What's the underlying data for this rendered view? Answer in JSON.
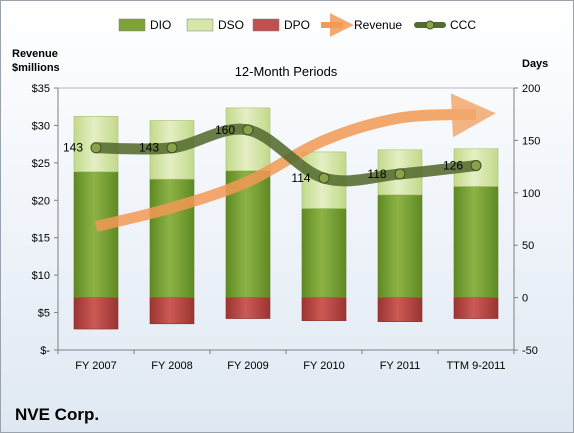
{
  "company": "NVE Corp.",
  "chart_data": {
    "type": "bar",
    "title": "12-Month Periods",
    "left_axis_title_line1": "Revenue",
    "left_axis_title_line2": "$millions",
    "right_axis_title": "Days",
    "categories": [
      "FY 2007",
      "FY 2008",
      "FY 2009",
      "FY 2010",
      "FY 2011",
      "TTM 9-2011"
    ],
    "left_ticks": [
      "$-",
      "$5",
      "$10",
      "$15",
      "$20",
      "$25",
      "$30",
      "$35"
    ],
    "right_ticks": [
      "-50",
      "0",
      "50",
      "100",
      "150",
      "200"
    ],
    "ylim_left": [
      0,
      35
    ],
    "ylim_right": [
      -50,
      200
    ],
    "legend": [
      "DIO",
      "DSO",
      "DPO",
      "Revenue",
      "CCC"
    ],
    "legend_position": "top",
    "colors": {
      "DIO": "#7ea23a",
      "DSO": "#d6e6a8",
      "DPO": "#c0504d",
      "Revenue": "#f29a55",
      "CCC": "#556b2f"
    },
    "series": [
      {
        "name": "DIO",
        "axis": "right",
        "values": [
          120,
          113,
          121,
          85,
          98,
          106
        ]
      },
      {
        "name": "DSO",
        "axis": "right",
        "values": [
          53,
          56,
          60,
          54,
          43,
          36
        ]
      },
      {
        "name": "DPO",
        "axis": "right",
        "values": [
          -30,
          -25,
          -20,
          -22,
          -23,
          -20
        ]
      },
      {
        "name": "CCC",
        "axis": "right",
        "values": [
          143,
          143,
          160,
          114,
          118,
          126
        ]
      },
      {
        "name": "Revenue",
        "axis": "left",
        "values": [
          16.5,
          19.0,
          22.5,
          28.0,
          31.0,
          31.5
        ]
      }
    ],
    "data_labels": [
      "143",
      "143",
      "160",
      "114",
      "118",
      "126"
    ]
  }
}
